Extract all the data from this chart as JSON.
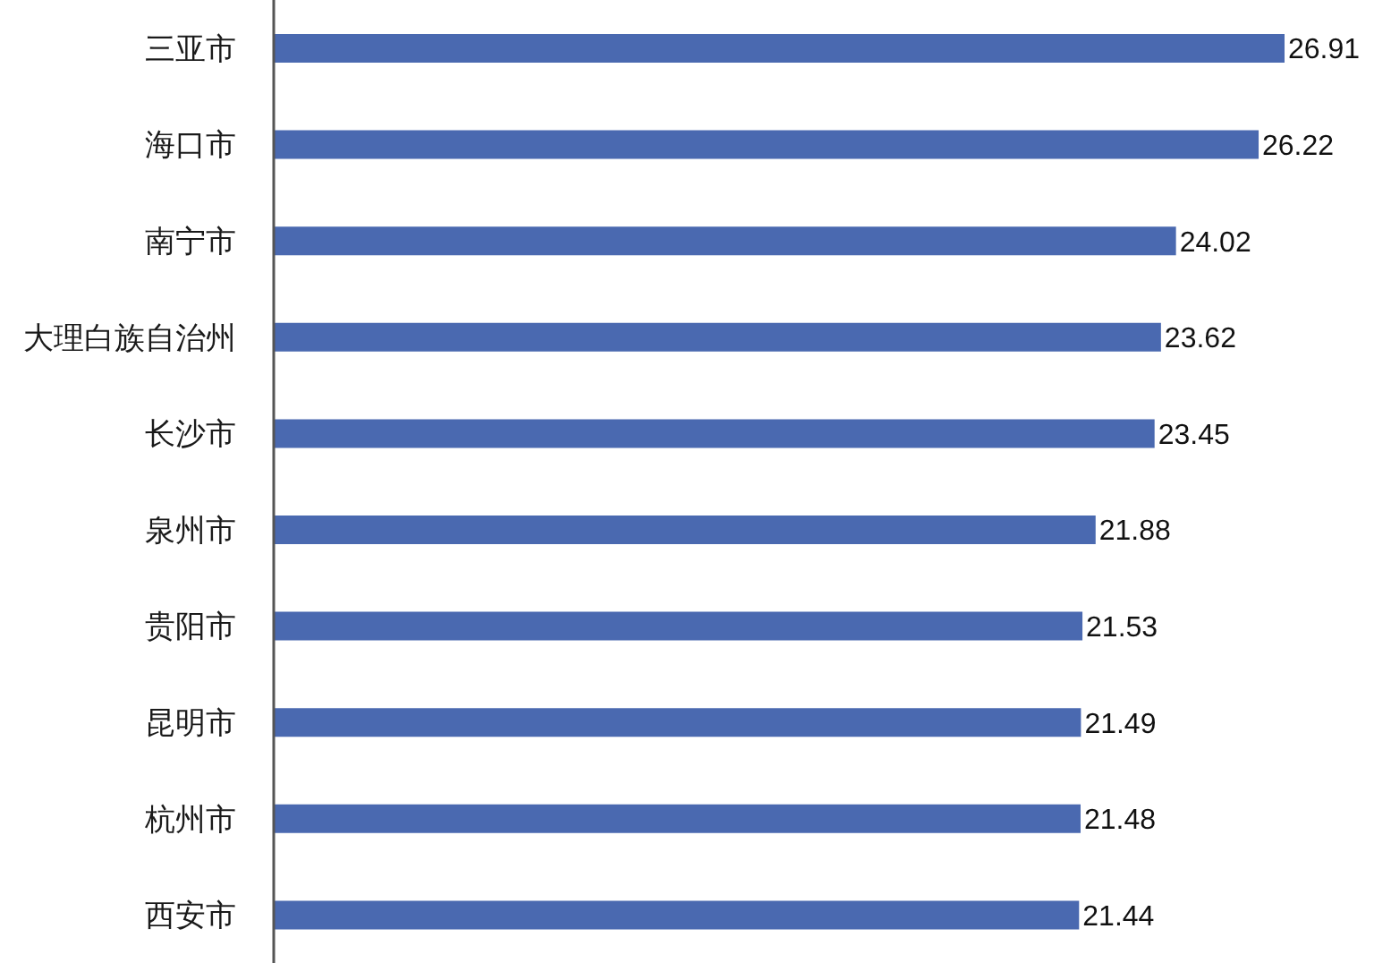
{
  "chart_data": {
    "type": "bar",
    "orientation": "horizontal",
    "categories": [
      "三亚市",
      "海口市",
      "南宁市",
      "大理白族自治州",
      "长沙市",
      "泉州市",
      "贵阳市",
      "昆明市",
      "杭州市",
      "西安市"
    ],
    "values": [
      26.91,
      26.22,
      24.02,
      23.62,
      23.45,
      21.88,
      21.53,
      21.49,
      21.48,
      21.44
    ],
    "color": "#4a69b0",
    "data_labels": true,
    "tick_labels": "y"
  }
}
